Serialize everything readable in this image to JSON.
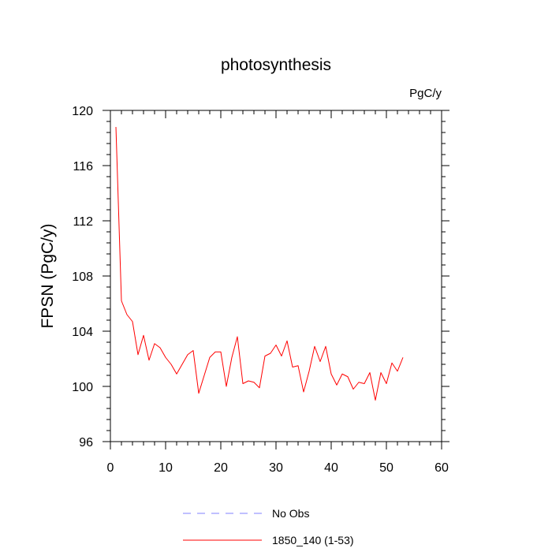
{
  "chart_data": {
    "type": "line",
    "title": "photosynthesis",
    "units_label": "PgC/y",
    "ylabel": "FPSN  (PgC/y)",
    "xlabel": "",
    "xlim": [
      0,
      60
    ],
    "ylim": [
      96,
      120
    ],
    "x_ticks": [
      0,
      10,
      20,
      30,
      40,
      50,
      60
    ],
    "y_ticks": [
      96,
      100,
      104,
      108,
      112,
      116,
      120
    ],
    "grid": false,
    "legend_position": "bottom",
    "legend": [
      {
        "label": "No Obs",
        "color": "#8080ff",
        "style": "dashed"
      },
      {
        "label": "1850_140 (1-53)",
        "color": "#ff0000",
        "style": "solid"
      }
    ],
    "series": [
      {
        "name": "1850_140 (1-53)",
        "color": "#ff0000",
        "x": [
          1,
          2,
          3,
          4,
          5,
          6,
          7,
          8,
          9,
          10,
          11,
          12,
          13,
          14,
          15,
          16,
          17,
          18,
          19,
          20,
          21,
          22,
          23,
          24,
          25,
          26,
          27,
          28,
          29,
          30,
          31,
          32,
          33,
          34,
          35,
          36,
          37,
          38,
          39,
          40,
          41,
          42,
          43,
          44,
          45,
          46,
          47,
          48,
          49,
          50,
          51,
          52,
          53
        ],
        "values": [
          118.8,
          106.2,
          105.2,
          104.7,
          102.3,
          103.7,
          101.9,
          103.1,
          102.8,
          102.1,
          101.6,
          100.9,
          101.6,
          102.3,
          102.6,
          99.5,
          100.8,
          102.1,
          102.5,
          102.5,
          100.0,
          102.1,
          103.6,
          100.2,
          100.4,
          100.3,
          99.9,
          102.2,
          102.4,
          103.0,
          102.2,
          103.3,
          101.4,
          101.5,
          99.6,
          101.1,
          102.9,
          101.8,
          102.9,
          100.9,
          100.1,
          100.9,
          100.7,
          99.8,
          100.3,
          100.2,
          101.0,
          99.0,
          101.0,
          100.2,
          101.7,
          101.1,
          102.1
        ]
      }
    ]
  }
}
